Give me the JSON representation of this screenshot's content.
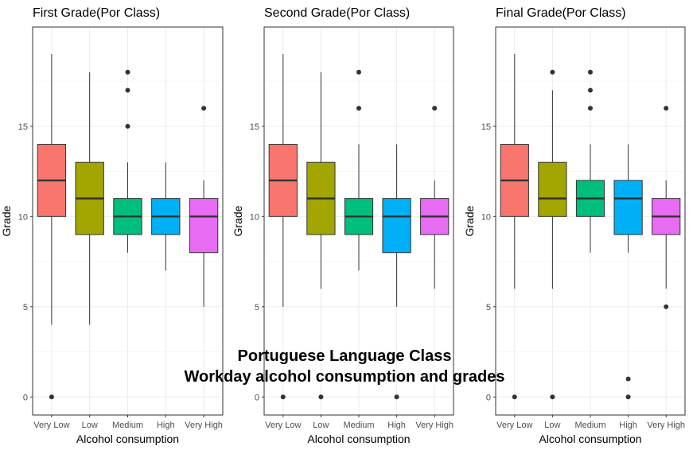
{
  "figure_title": {
    "line1": "Portuguese Language Class",
    "line2": "Workday alcohol consumption and grades"
  },
  "colors": {
    "Very Low": "#F8766D",
    "Low": "#A3A500",
    "Medium": "#00BF7D",
    "High": "#00B0F6",
    "Very High": "#E76BF3"
  },
  "chart_data": [
    {
      "type": "boxplot",
      "title": "First Grade(Por Class)",
      "xlabel": "Alcohol consumption",
      "ylabel": "Grade",
      "ylim": [
        -1,
        20.5
      ],
      "yticks": [
        0,
        5,
        10,
        15
      ],
      "categories": [
        "Very Low",
        "Low",
        "Medium",
        "High",
        "Very High"
      ],
      "boxes": [
        {
          "q1": 10,
          "median": 12,
          "q3": 14,
          "whisker_low": 4,
          "whisker_high": 19,
          "outliers": [
            0
          ]
        },
        {
          "q1": 9,
          "median": 11,
          "q3": 13,
          "whisker_low": 4,
          "whisker_high": 18,
          "outliers": []
        },
        {
          "q1": 9,
          "median": 10,
          "q3": 11,
          "whisker_low": 8,
          "whisker_high": 13,
          "outliers": [
            15,
            17,
            18
          ]
        },
        {
          "q1": 9,
          "median": 10,
          "q3": 11,
          "whisker_low": 7,
          "whisker_high": 13,
          "outliers": []
        },
        {
          "q1": 8,
          "median": 10,
          "q3": 11,
          "whisker_low": 5,
          "whisker_high": 12,
          "outliers": [
            16
          ]
        }
      ],
      "grid": true
    },
    {
      "type": "boxplot",
      "title": "Second Grade(Por Class)",
      "xlabel": "Alcohol consumption",
      "ylabel": "Grade",
      "ylim": [
        -1,
        20.5
      ],
      "yticks": [
        0,
        5,
        10,
        15
      ],
      "categories": [
        "Very Low",
        "Low",
        "Medium",
        "High",
        "Very High"
      ],
      "boxes": [
        {
          "q1": 10,
          "median": 12,
          "q3": 14,
          "whisker_low": 5,
          "whisker_high": 19,
          "outliers": [
            0
          ]
        },
        {
          "q1": 9,
          "median": 11,
          "q3": 13,
          "whisker_low": 6,
          "whisker_high": 18,
          "outliers": [
            0
          ]
        },
        {
          "q1": 9,
          "median": 10,
          "q3": 11,
          "whisker_low": 7,
          "whisker_high": 14,
          "outliers": [
            16,
            18
          ]
        },
        {
          "q1": 8,
          "median": 10,
          "q3": 11,
          "whisker_low": 5,
          "whisker_high": 14,
          "outliers": [
            0
          ]
        },
        {
          "q1": 9,
          "median": 10,
          "q3": 11,
          "whisker_low": 6,
          "whisker_high": 12,
          "outliers": [
            16
          ]
        }
      ],
      "grid": true
    },
    {
      "type": "boxplot",
      "title": "Final Grade(Por Class)",
      "xlabel": "Alcohol consumption",
      "ylabel": "Grade",
      "ylim": [
        -1,
        20.5
      ],
      "yticks": [
        0,
        5,
        10,
        15
      ],
      "categories": [
        "Very Low",
        "Low",
        "Medium",
        "High",
        "Very High"
      ],
      "boxes": [
        {
          "q1": 10,
          "median": 12,
          "q3": 14,
          "whisker_low": 6,
          "whisker_high": 19,
          "outliers": [
            0
          ]
        },
        {
          "q1": 10,
          "median": 11,
          "q3": 13,
          "whisker_low": 6,
          "whisker_high": 17,
          "outliers": [
            0,
            18
          ]
        },
        {
          "q1": 10,
          "median": 11,
          "q3": 12,
          "whisker_low": 8,
          "whisker_high": 14,
          "outliers": [
            16,
            17,
            18
          ]
        },
        {
          "q1": 9,
          "median": 11,
          "q3": 12,
          "whisker_low": 8,
          "whisker_high": 14,
          "outliers": [
            0,
            1
          ]
        },
        {
          "q1": 9,
          "median": 10,
          "q3": 11,
          "whisker_low": 6,
          "whisker_high": 12,
          "outliers": [
            5,
            16
          ]
        }
      ],
      "grid": true
    }
  ]
}
